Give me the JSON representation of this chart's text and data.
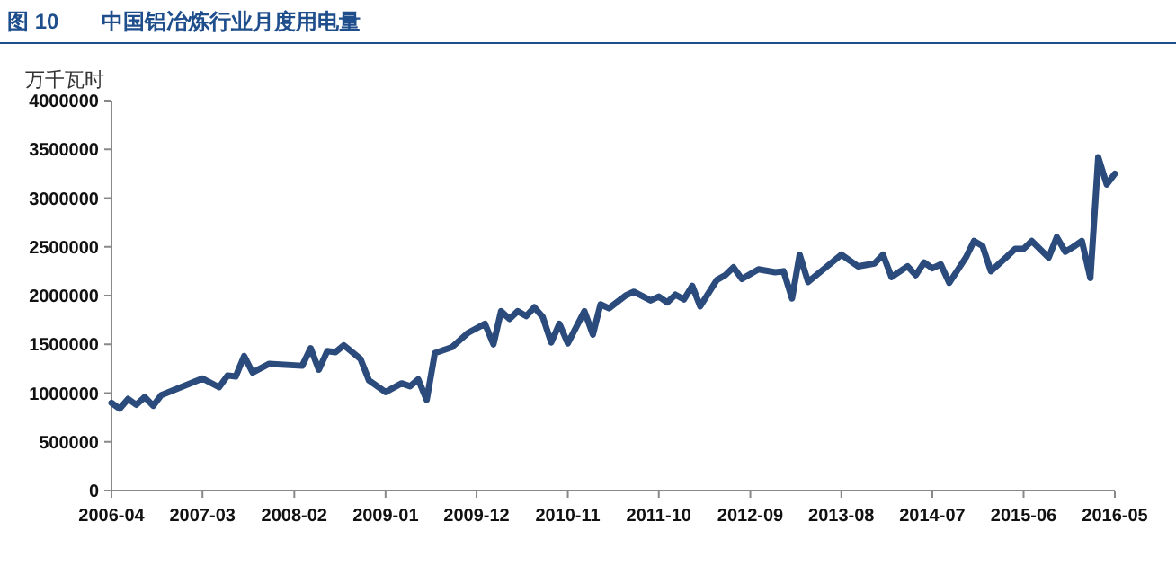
{
  "chart_data": {
    "type": "line",
    "title": "图 10　　中国铝冶炼行业月度用电量",
    "ylabel": "万千瓦时",
    "x": [
      "2006-04",
      "2006-05",
      "2006-06",
      "2006-07",
      "2006-08",
      "2006-09",
      "2006-10",
      "2007-03",
      "2007-05",
      "2007-06",
      "2007-07",
      "2007-08",
      "2007-09",
      "2007-11",
      "2008-03",
      "2008-04",
      "2008-05",
      "2008-06",
      "2008-07",
      "2008-08",
      "2008-10",
      "2008-11",
      "2009-01",
      "2009-03",
      "2009-04",
      "2009-05",
      "2009-06",
      "2009-07",
      "2009-09",
      "2009-11",
      "2010-01",
      "2010-02",
      "2010-03",
      "2010-04",
      "2010-05",
      "2010-06",
      "2010-07",
      "2010-08",
      "2010-09",
      "2010-10",
      "2010-11",
      "2011-01",
      "2011-02",
      "2011-03",
      "2011-04",
      "2011-06",
      "2011-07",
      "2011-09",
      "2011-10",
      "2011-11",
      "2011-12",
      "2012-01",
      "2012-02",
      "2012-03",
      "2012-05",
      "2012-06",
      "2012-07",
      "2012-08",
      "2012-10",
      "2012-12",
      "2013-01",
      "2013-02",
      "2013-03",
      "2013-04",
      "2013-06",
      "2013-08",
      "2013-10",
      "2013-12",
      "2014-01",
      "2014-02",
      "2014-04",
      "2014-05",
      "2014-06",
      "2014-07",
      "2014-08",
      "2014-09",
      "2014-11",
      "2014-12",
      "2015-01",
      "2015-02",
      "2015-04",
      "2015-05",
      "2015-06",
      "2015-07",
      "2015-09",
      "2015-10",
      "2015-11",
      "2015-12",
      "2016-01",
      "2016-02",
      "2016-03",
      "2016-04",
      "2016-05"
    ],
    "series": [
      {
        "color": "#2a4b7c",
        "values": [
          900000,
          840000,
          940000,
          880000,
          960000,
          870000,
          980000,
          1150000,
          1060000,
          1180000,
          1170000,
          1380000,
          1210000,
          1300000,
          1280000,
          1460000,
          1240000,
          1430000,
          1420000,
          1490000,
          1350000,
          1130000,
          1010000,
          1100000,
          1070000,
          1140000,
          930000,
          1410000,
          1470000,
          1620000,
          1710000,
          1500000,
          1840000,
          1760000,
          1840000,
          1790000,
          1880000,
          1780000,
          1520000,
          1710000,
          1510000,
          1840000,
          1600000,
          1910000,
          1870000,
          2000000,
          2040000,
          1950000,
          1990000,
          1930000,
          2010000,
          1960000,
          2100000,
          1890000,
          2160000,
          2210000,
          2290000,
          2170000,
          2270000,
          2240000,
          2250000,
          1970000,
          2420000,
          2140000,
          2280000,
          2420000,
          2300000,
          2330000,
          2420000,
          2190000,
          2300000,
          2210000,
          2340000,
          2280000,
          2320000,
          2130000,
          2390000,
          2560000,
          2510000,
          2250000,
          2400000,
          2480000,
          2480000,
          2560000,
          2390000,
          2600000,
          2450000,
          2500000,
          2560000,
          2180000,
          3420000,
          3140000,
          3250000
        ]
      }
    ],
    "xlim": [
      "2006-04",
      "2016-05"
    ],
    "xticks": [
      "2006-04",
      "2007-03",
      "2008-02",
      "2009-01",
      "2009-12",
      "2010-11",
      "2011-10",
      "2012-09",
      "2013-08",
      "2014-07",
      "2015-06",
      "2016-05"
    ],
    "ylim": [
      0,
      4000000
    ],
    "yticks": [
      0,
      500000,
      1000000,
      1500000,
      2000000,
      2500000,
      3000000,
      3500000,
      4000000
    ],
    "grid": false,
    "line_style": "solid",
    "marker": "none"
  }
}
